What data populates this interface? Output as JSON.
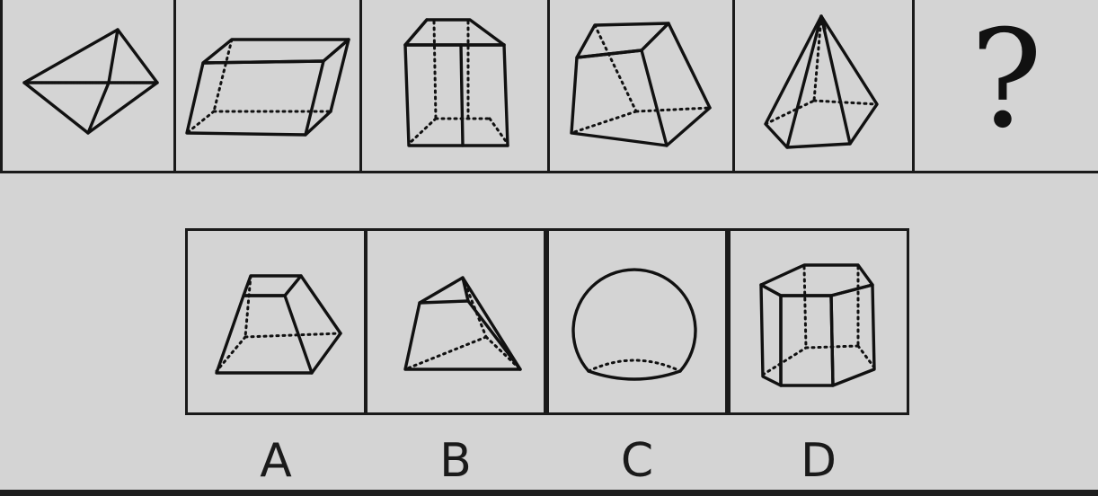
{
  "question": {
    "sequence": [
      {
        "shape": "triangular-bipyramid-icon"
      },
      {
        "shape": "parallelepiped-icon"
      },
      {
        "shape": "frustum-box-icon"
      },
      {
        "shape": "irregular-prism-icon"
      },
      {
        "shape": "pentagonal-pyramid-icon"
      },
      {
        "shape": "question-mark",
        "text": "?"
      }
    ]
  },
  "options": [
    {
      "label": "A",
      "shape": "truncated-pyramid-icon"
    },
    {
      "label": "B",
      "shape": "triangular-frustum-icon"
    },
    {
      "label": "C",
      "shape": "truncated-sphere-icon"
    },
    {
      "label": "D",
      "shape": "hexagonal-prism-icon"
    }
  ],
  "colors": {
    "background": "#d4d4d4",
    "ink": "#111111"
  }
}
